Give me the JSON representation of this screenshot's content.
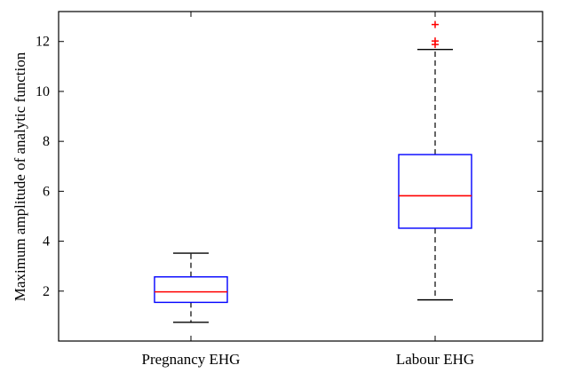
{
  "chart_data": {
    "type": "boxplot",
    "title": "",
    "xlabel": "",
    "ylabel": "Maximum amplitude of analytic function",
    "ylim": [
      0,
      13.2
    ],
    "yticks": [
      2,
      4,
      6,
      8,
      10,
      12
    ],
    "grid": false,
    "categories": [
      "Pregnancy EHG",
      "Labour EHG"
    ],
    "boxes": [
      {
        "category": "Pregnancy EHG",
        "whisker_low": 0.75,
        "q1": 1.55,
        "median": 1.97,
        "q3": 2.57,
        "whisker_high": 3.52,
        "outliers": []
      },
      {
        "category": "Labour EHG",
        "whisker_low": 1.65,
        "q1": 4.52,
        "median": 5.82,
        "q3": 7.47,
        "whisker_high": 11.68,
        "outliers": [
          11.88,
          12.02,
          12.68
        ]
      }
    ],
    "colors": {
      "box": "#0000ff",
      "median": "#ff0000",
      "whisker": "#000000",
      "outlier": "#ff0000"
    }
  }
}
